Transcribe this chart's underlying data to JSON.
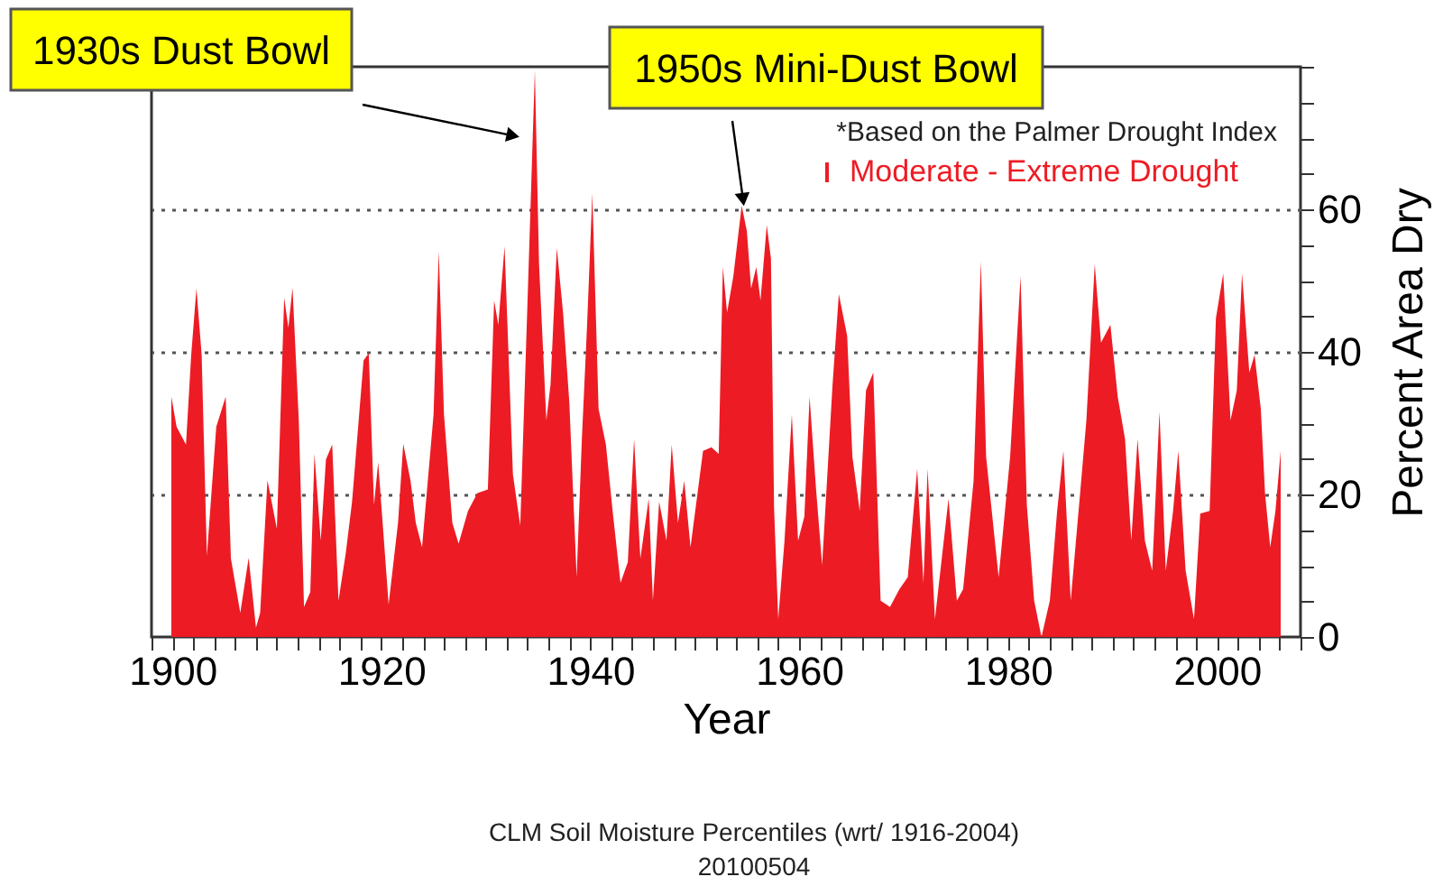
{
  "chart_data": {
    "type": "area",
    "xlabel": "Year",
    "ylabel": "Percent Area Dry",
    "x": [
      1899.9,
      1900.4,
      1901.3,
      1901.8,
      1902.3,
      1902.8,
      1903.3,
      1904.2,
      1905.1,
      1905.6,
      1906.5,
      1907.3,
      1908,
      1908.4,
      1909.1,
      1910,
      1910.7,
      1911.1,
      1911.5,
      1912.1,
      1912.6,
      1913.2,
      1913.6,
      1914.2,
      1914.7,
      1915.3,
      1915.9,
      1916.6,
      1917.2,
      1918.3,
      1918.8,
      1919.3,
      1919.7,
      1920.7,
      1921.6,
      1922.1,
      1922.8,
      1923.3,
      1923.9,
      1925,
      1925.5,
      1926,
      1926.8,
      1927.4,
      1928.3,
      1929.2,
      1930.2,
      1930.8,
      1931.2,
      1931.8,
      1932.6,
      1933.3,
      1934,
      1934.7,
      1935.1,
      1935.8,
      1936.2,
      1936.8,
      1937.4,
      1938,
      1938.7,
      1939.2,
      1939.7,
      1940.2,
      1940.8,
      1941.5,
      1942.2,
      1942.9,
      1943.6,
      1944.2,
      1944.8,
      1945.6,
      1946,
      1946.6,
      1947.3,
      1947.8,
      1948.4,
      1949,
      1949.6,
      1950.8,
      1951.6,
      1952.3,
      1952.7,
      1953.1,
      1953.7,
      1954.5,
      1955,
      1955.4,
      1955.9,
      1956.3,
      1956.9,
      1957.3,
      1957.6,
      1958,
      1958.6,
      1959.3,
      1959.9,
      1960.5,
      1961,
      1961.6,
      1962.2,
      1963.2,
      1963.8,
      1964.6,
      1965.1,
      1965.8,
      1966.4,
      1967.1,
      1967.8,
      1968.7,
      1969.6,
      1970.4,
      1971.3,
      1971.9,
      1972.3,
      1973,
      1974.3,
      1975.1,
      1975.7,
      1976.7,
      1977.4,
      1977.9,
      1979.1,
      1980.2,
      1981.2,
      1981.8,
      1982.5,
      1983.2,
      1984,
      1984.7,
      1985.3,
      1986,
      1986.9,
      1987.5,
      1988.3,
      1988.9,
      1989.8,
      1990.5,
      1991.2,
      1991.8,
      1992.4,
      1993.1,
      1993.8,
      1994.5,
      1995.1,
      1995.8,
      1996.3,
      1997,
      1997.8,
      1998.4,
      1999.3,
      1999.9,
      2000.6,
      2001.3,
      2001.9,
      2002.4,
      2003.1,
      2003.6,
      2004.2,
      2004.6,
      2005.1,
      2005.6,
      2006.1
    ],
    "series": [
      {
        "name": "Moderate - Extreme Drought",
        "color": "#ed1c24",
        "values": [
          33.7,
          29.5,
          27,
          39.6,
          48.9,
          39.6,
          11.4,
          29.5,
          33.7,
          11,
          3.4,
          11.1,
          1.3,
          3.4,
          22,
          15.2,
          47.6,
          43.4,
          49,
          30.4,
          4.2,
          6.3,
          25.7,
          13.5,
          24.9,
          27,
          5.1,
          11.8,
          19,
          38.8,
          39.8,
          18.5,
          24.5,
          4.6,
          16,
          27.1,
          21.9,
          16,
          12.6,
          31.2,
          54.1,
          31.2,
          16,
          13.1,
          17.7,
          20.2,
          20.7,
          47.2,
          43.8,
          54.8,
          22.8,
          15.6,
          47.2,
          79.5,
          52.3,
          30.4,
          35.4,
          54.6,
          45.5,
          32.9,
          8.4,
          27.8,
          43.8,
          62.2,
          32,
          27,
          16.9,
          7.6,
          10.5,
          27.8,
          11,
          19.4,
          5.1,
          19,
          13.5,
          27,
          16,
          21.9,
          12.6,
          26.1,
          26.6,
          25.7,
          51.9,
          45.5,
          50.6,
          60.5,
          56.9,
          48.9,
          51.9,
          47.2,
          57.8,
          53.1,
          18.1,
          2.5,
          13.5,
          31.2,
          13.5,
          16.9,
          33.7,
          21.1,
          10.1,
          35.4,
          48.1,
          42.2,
          25.3,
          17.7,
          34.6,
          37.1,
          5.1,
          4.2,
          6.7,
          8.4,
          23.6,
          7.6,
          23.6,
          2.5,
          19.4,
          5.1,
          6.7,
          21.9,
          52.7,
          25.3,
          8.4,
          25.3,
          50.6,
          18.5,
          5.1,
          0,
          5.1,
          17.7,
          26.1,
          5.1,
          20.2,
          30.4,
          52.3,
          41.3,
          43.8,
          33.7,
          27.8,
          13.5,
          27.8,
          13.5,
          9.3,
          31.6,
          9.3,
          17.7,
          26.1,
          9.3,
          2.5,
          17.3,
          17.7,
          44.7,
          51,
          30.4,
          34.6,
          51,
          37.1,
          39.6,
          32,
          20.2,
          12.6,
          17.7,
          26.1
        ]
      }
    ],
    "xlim": [
      1898,
      2008
    ],
    "xticks": [
      {
        "value": 1898,
        "label": null
      },
      1900,
      {
        "value": 1902,
        "label": null
      },
      {
        "value": 1904,
        "label": null
      },
      {
        "value": 1906,
        "label": null
      },
      {
        "value": 1908,
        "label": null
      },
      {
        "value": 1910,
        "label": null
      },
      {
        "value": 1912,
        "label": null
      },
      {
        "value": 1914,
        "label": null
      },
      {
        "value": 1916,
        "label": null
      },
      {
        "value": 1918,
        "label": null
      },
      1920,
      {
        "value": 1922,
        "label": null
      },
      {
        "value": 1924,
        "label": null
      },
      {
        "value": 1926,
        "label": null
      },
      {
        "value": 1928,
        "label": null
      },
      {
        "value": 1930,
        "label": null
      },
      {
        "value": 1932,
        "label": null
      },
      {
        "value": 1934,
        "label": null
      },
      {
        "value": 1936,
        "label": null
      },
      {
        "value": 1938,
        "label": null
      },
      1940,
      {
        "value": 1942,
        "label": null
      },
      {
        "value": 1944,
        "label": null
      },
      {
        "value": 1946,
        "label": null
      },
      {
        "value": 1948,
        "label": null
      },
      {
        "value": 1950,
        "label": null
      },
      {
        "value": 1952,
        "label": null
      },
      {
        "value": 1954,
        "label": null
      },
      {
        "value": 1956,
        "label": null
      },
      {
        "value": 1958,
        "label": null
      },
      1960,
      {
        "value": 1962,
        "label": null
      },
      {
        "value": 1964,
        "label": null
      },
      {
        "value": 1966,
        "label": null
      },
      {
        "value": 1968,
        "label": null
      },
      {
        "value": 1970,
        "label": null
      },
      {
        "value": 1972,
        "label": null
      },
      {
        "value": 1974,
        "label": null
      },
      {
        "value": 1976,
        "label": null
      },
      {
        "value": 1978,
        "label": null
      },
      1980,
      {
        "value": 1982,
        "label": null
      },
      {
        "value": 1984,
        "label": null
      },
      {
        "value": 1986,
        "label": null
      },
      {
        "value": 1988,
        "label": null
      },
      {
        "value": 1990,
        "label": null
      },
      {
        "value": 1992,
        "label": null
      },
      {
        "value": 1994,
        "label": null
      },
      {
        "value": 1996,
        "label": null
      },
      {
        "value": 1998,
        "label": null
      },
      2000,
      {
        "value": 2002,
        "label": null
      },
      {
        "value": 2004,
        "label": null
      },
      {
        "value": 2006,
        "label": null
      },
      {
        "value": 2008,
        "label": null
      }
    ],
    "ylim": [
      0,
      80
    ],
    "yticks": [
      0,
      {
        "value": 5,
        "label": null
      },
      {
        "value": 10,
        "label": null
      },
      {
        "value": 15,
        "label": null
      },
      20,
      {
        "value": 25,
        "label": null
      },
      {
        "value": 30,
        "label": null
      },
      {
        "value": 35,
        "label": null
      },
      40,
      {
        "value": 45,
        "label": null
      },
      {
        "value": 50,
        "label": null
      },
      {
        "value": 55,
        "label": null
      },
      60,
      {
        "value": 65,
        "label": null
      },
      {
        "value": 70,
        "label": null
      },
      {
        "value": 75,
        "label": null
      },
      {
        "value": 80,
        "label": null
      }
    ],
    "grid": "y",
    "legend": "top right",
    "annotations": [
      {
        "text": "1930s Dust Bowl",
        "x": 1932.4,
        "y": 70.4
      },
      {
        "text": "1950s Mini-Dust Bowl",
        "x": 1954.6,
        "y": 61.7
      },
      "*Based on the Palmer Drought Index",
      "CLM Soil Moisture Percentiles (wrt/ 1916-2004)",
      "20100504"
    ]
  }
}
